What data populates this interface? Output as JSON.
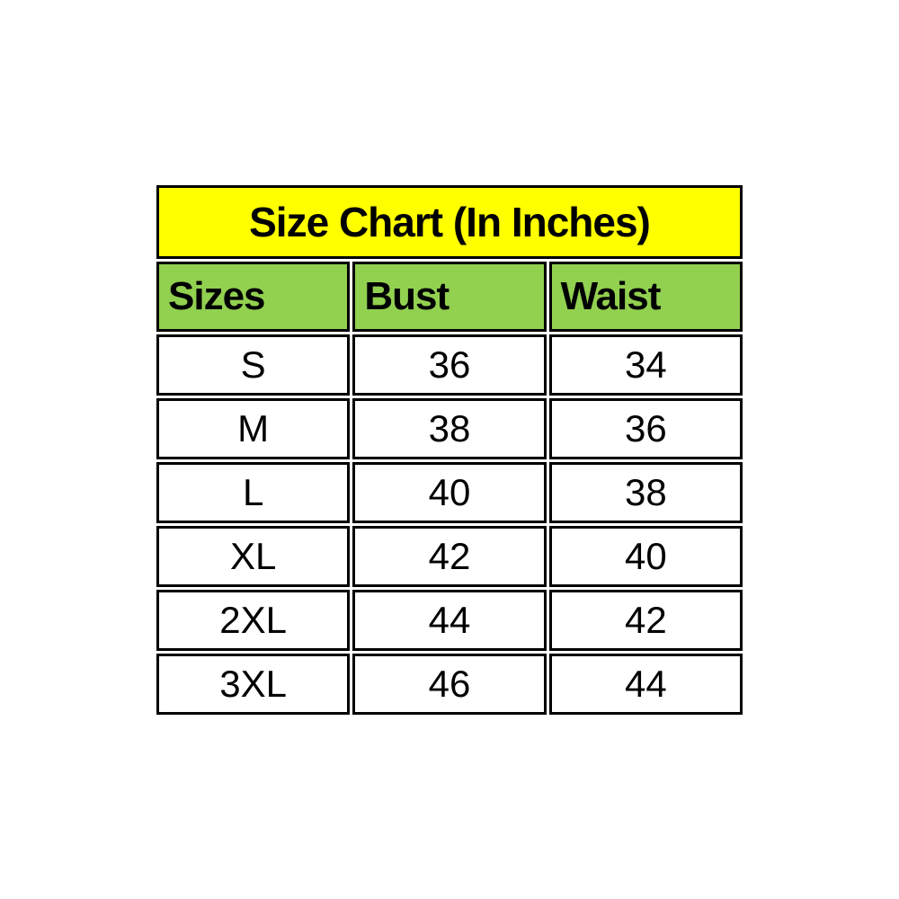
{
  "title": "Size Chart (In Inches)",
  "headers": [
    "Sizes",
    "Bust",
    "Waist"
  ],
  "rows": [
    [
      "S",
      "36",
      "34"
    ],
    [
      "M",
      "38",
      "36"
    ],
    [
      "L",
      "40",
      "38"
    ],
    [
      "XL",
      "42",
      "40"
    ],
    [
      "2XL",
      "44",
      "42"
    ],
    [
      "3XL",
      "46",
      "44"
    ]
  ],
  "colors": {
    "title_bg": "#ffff00",
    "header_bg": "#92d050",
    "row_bg": "#ffffff",
    "border": "#000000",
    "text": "#000000",
    "page_bg": "#ffffff"
  },
  "chart_data": {
    "type": "table",
    "title": "Size Chart (In Inches)",
    "columns": [
      "Sizes",
      "Bust",
      "Waist"
    ],
    "rows": [
      {
        "size": "S",
        "bust": 36,
        "waist": 34
      },
      {
        "size": "M",
        "bust": 38,
        "waist": 36
      },
      {
        "size": "L",
        "bust": 40,
        "waist": 38
      },
      {
        "size": "XL",
        "bust": 42,
        "waist": 40
      },
      {
        "size": "2XL",
        "bust": 44,
        "waist": 42
      },
      {
        "size": "3XL",
        "bust": 46,
        "waist": 44
      }
    ],
    "units": "inches",
    "layout_hints": {
      "title_row_bg": "#ffff00",
      "header_row_bg": "#92d050",
      "header_align": "left",
      "data_align": "center",
      "border_style": "thick black cell borders with small white gaps"
    }
  }
}
